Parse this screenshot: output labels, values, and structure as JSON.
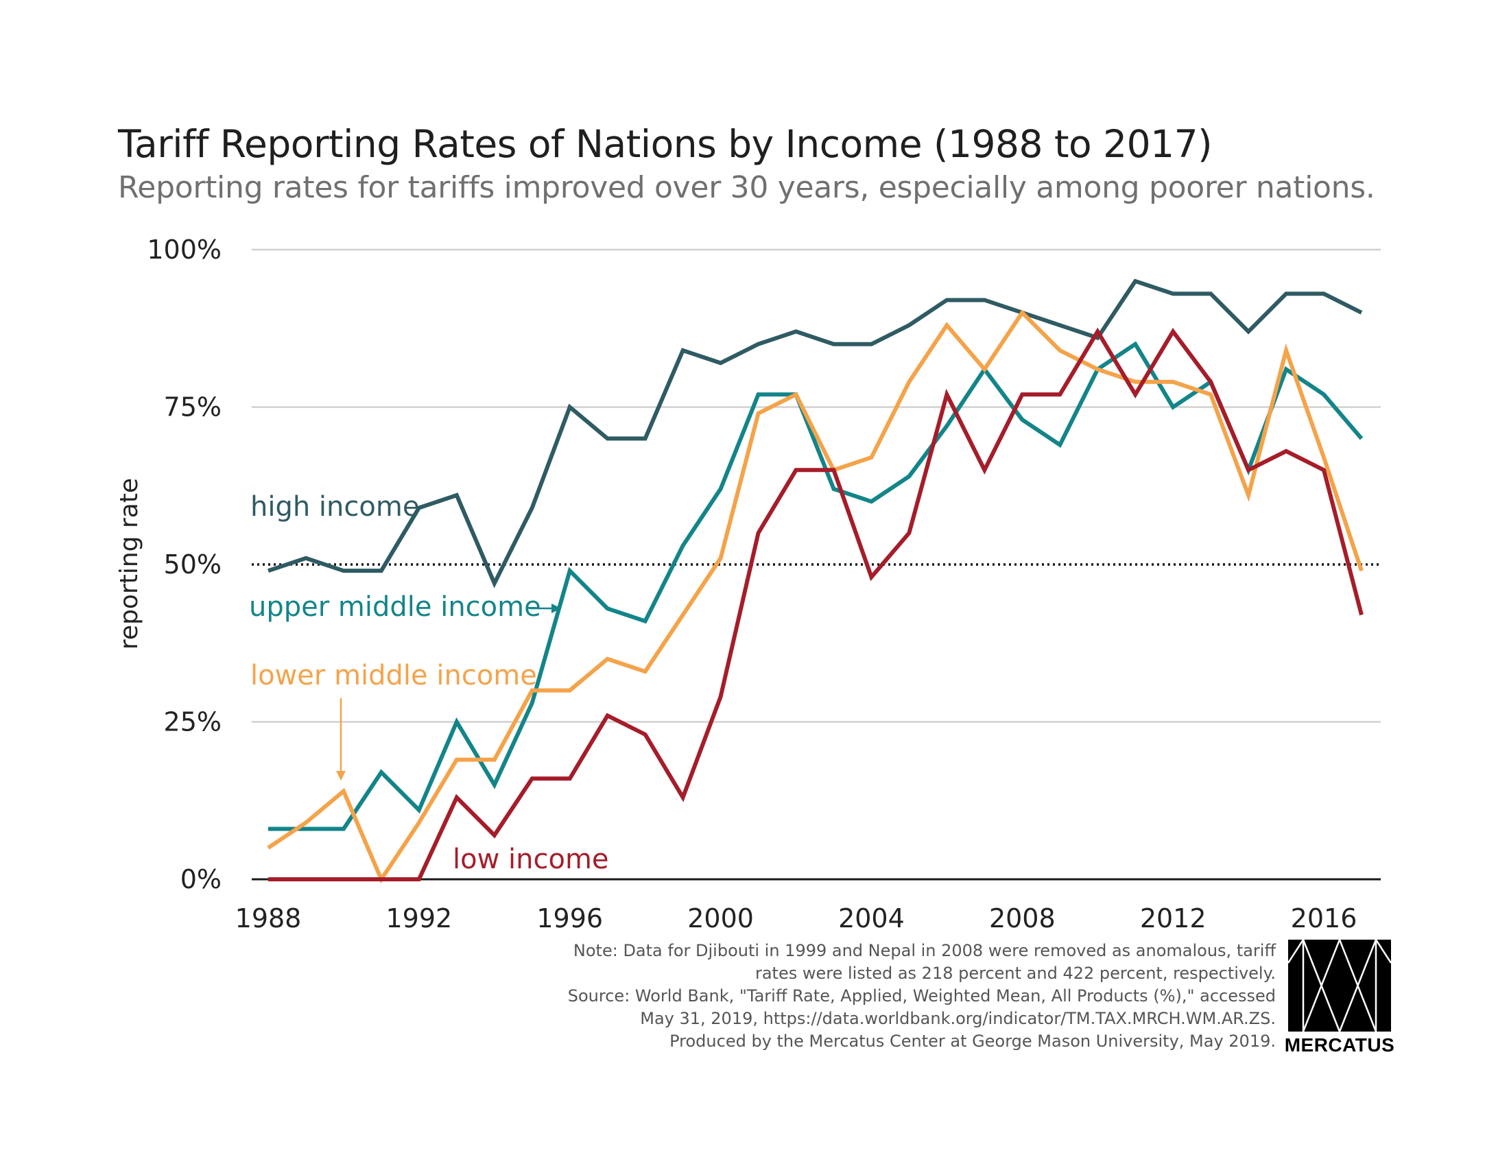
{
  "title": "Tariff Reporting Rates of Nations by Income (1988 to 2017)",
  "subtitle": "Reporting rates for tariffs improved over 30 years, especially among poorer nations.",
  "notes": [
    "Note: Data for Djibouti in 1999 and Nepal in 2008 were removed as anomalous, tariff",
    "rates were listed as 218 percent and 422 percent, respectively.",
    "Source: World Bank, \"Tariff Rate, Applied, Weighted Mean, All Products (%),\" accessed",
    "May 31, 2019, https://data.worldbank.org/indicator/TM.TAX.MRCH.WM.AR.ZS.",
    "Produced by the Mercatus Center at  George Mason University, May 2019."
  ],
  "logo_text": "MERCATUS",
  "chart_data": {
    "type": "line",
    "title": "Tariff Reporting Rates of Nations by Income (1988 to 2017)",
    "subtitle": "Reporting rates for tariffs improved over 30 years, especially among poorer nations.",
    "xlabel": "",
    "ylabel": "reporting rate",
    "xlim": [
      1988,
      2017
    ],
    "ylim": [
      0,
      100
    ],
    "x_ticks": [
      1988,
      1992,
      1996,
      2000,
      2004,
      2008,
      2012,
      2016
    ],
    "y_ticks": [
      0,
      25,
      50,
      75,
      100
    ],
    "y_tick_labels": [
      "0%",
      "25%",
      "50%",
      "75%",
      "100%"
    ],
    "grid": "horizontal",
    "reference_line": {
      "y": 50,
      "style": "dotted"
    },
    "x": [
      1988,
      1989,
      1990,
      1991,
      1992,
      1993,
      1994,
      1995,
      1996,
      1997,
      1998,
      1999,
      2000,
      2001,
      2002,
      2003,
      2004,
      2005,
      2006,
      2007,
      2008,
      2009,
      2010,
      2011,
      2012,
      2013,
      2014,
      2015,
      2016,
      2017
    ],
    "series": [
      {
        "name": "high income",
        "color": "#2f5b63",
        "values": [
          49,
          51,
          49,
          49,
          59,
          61,
          47,
          59,
          75,
          70,
          70,
          84,
          82,
          85,
          87,
          85,
          85,
          88,
          92,
          92,
          90,
          88,
          86,
          95,
          93,
          93,
          87,
          93,
          93,
          90
        ]
      },
      {
        "name": "upper middle income",
        "color": "#138589",
        "values": [
          8,
          8,
          8,
          17,
          11,
          25,
          15,
          28,
          49,
          43,
          41,
          53,
          62,
          77,
          77,
          62,
          60,
          64,
          72,
          81,
          73,
          69,
          81,
          85,
          75,
          79,
          65,
          81,
          77,
          70
        ]
      },
      {
        "name": "lower middle income",
        "color": "#f4a34a",
        "values": [
          5,
          9,
          14,
          0,
          9,
          19,
          19,
          30,
          30,
          35,
          33,
          42,
          51,
          74,
          77,
          65,
          67,
          79,
          88,
          81,
          90,
          84,
          81,
          79,
          79,
          77,
          61,
          84,
          67,
          49
        ]
      },
      {
        "name": "low income",
        "color": "#a51d2a",
        "values": [
          0,
          0,
          0,
          0,
          0,
          13,
          7,
          16,
          16,
          26,
          23,
          13,
          29,
          55,
          65,
          65,
          48,
          55,
          77,
          65,
          77,
          77,
          87,
          77,
          87,
          79,
          65,
          68,
          65,
          42
        ]
      }
    ]
  }
}
